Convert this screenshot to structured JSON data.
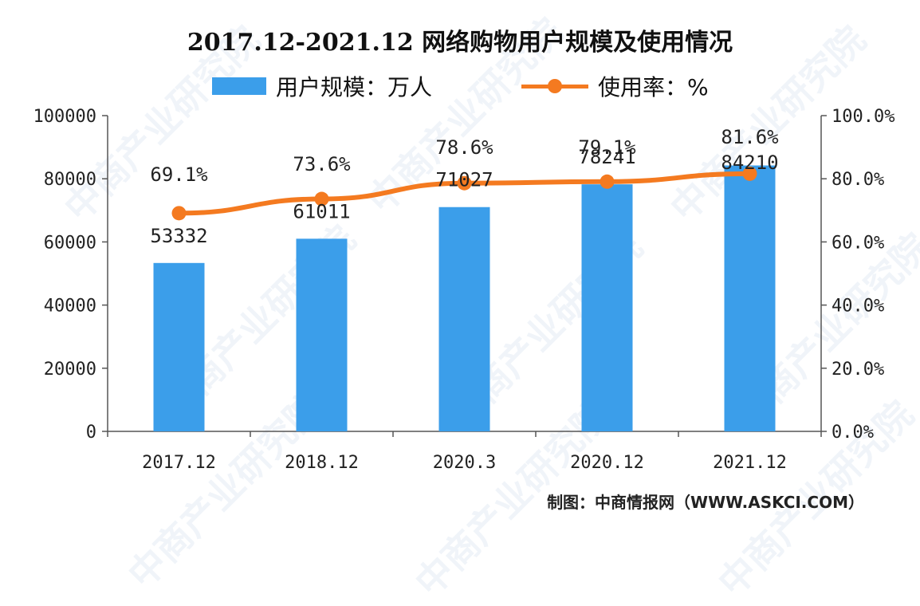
{
  "title": "2017.12-2021.12 网络购物用户规模及使用情况",
  "legend": {
    "bar_label": "用户规模：万人",
    "line_label": "使用率：%"
  },
  "source": "制图：中商情报网（WWW.ASKCI.COM）",
  "watermark": "中商产业研究院",
  "colors": {
    "bar": "#3b9eea",
    "line": "#f47a20"
  },
  "chart_data": {
    "type": "bar",
    "categories": [
      "2017.12",
      "2018.12",
      "2020.3",
      "2020.12",
      "2021.12"
    ],
    "series": [
      {
        "name": "用户规模：万人",
        "type": "bar",
        "axis": "left",
        "values": [
          53332,
          61011,
          71027,
          78241,
          84210
        ]
      },
      {
        "name": "使用率：%",
        "type": "line",
        "axis": "right",
        "values": [
          69.1,
          73.6,
          78.6,
          79.1,
          81.6
        ]
      }
    ],
    "bar_labels": [
      "53332",
      "61011",
      "71027",
      "78241",
      "84210"
    ],
    "line_labels": [
      "69.1%",
      "73.6%",
      "78.6%",
      "79.1%",
      "81.6%"
    ],
    "ylim_left": [
      0,
      100000
    ],
    "yticks_left": [
      "0",
      "20000",
      "40000",
      "60000",
      "80000",
      "100000"
    ],
    "ylim_right": [
      0,
      100
    ],
    "yticks_right": [
      "0.0%",
      "20.0%",
      "40.0%",
      "60.0%",
      "80.0%",
      "100.0%"
    ],
    "grid": false,
    "legend_position": "top"
  }
}
